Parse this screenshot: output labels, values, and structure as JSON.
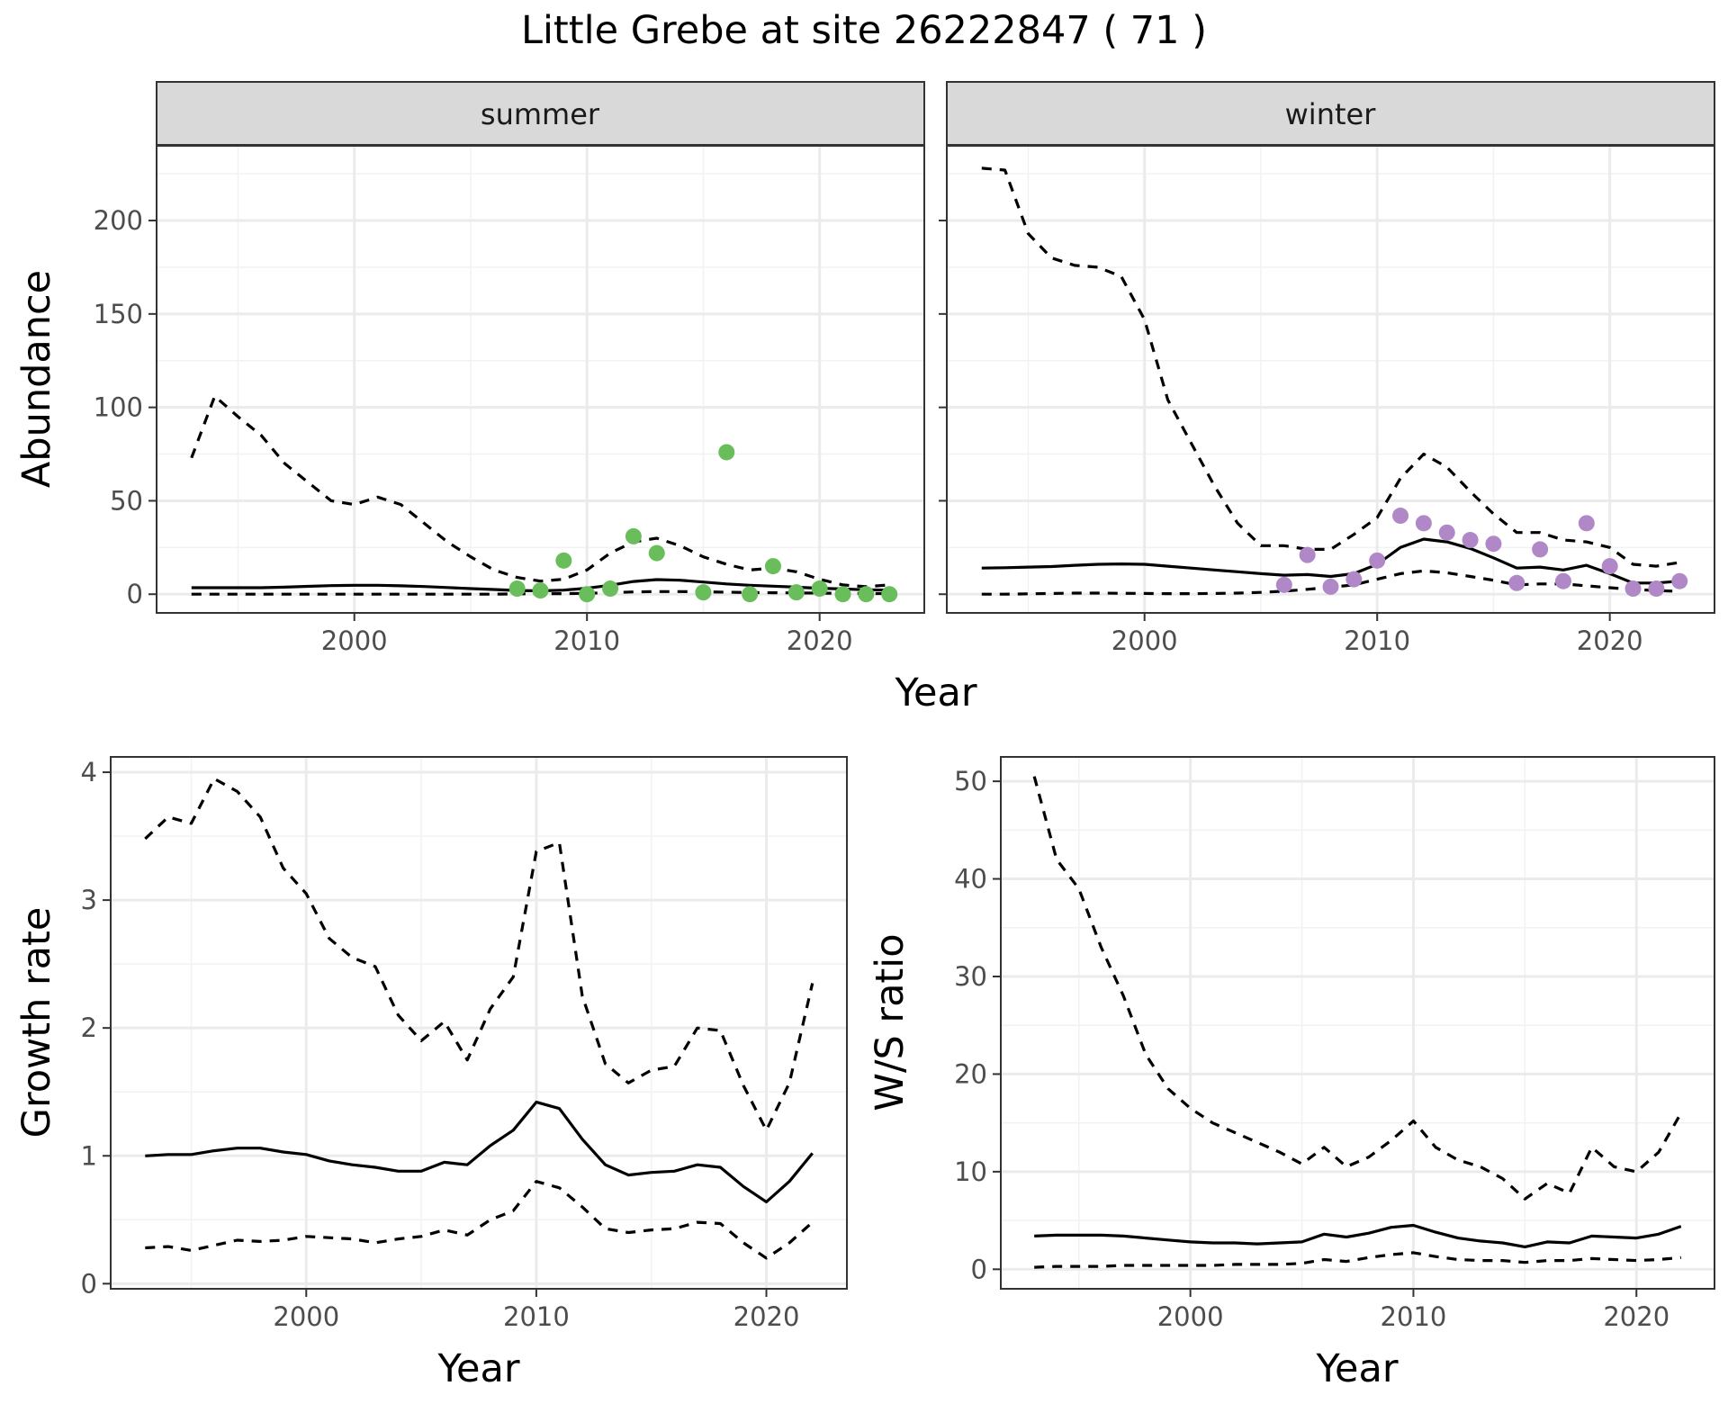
{
  "figure": {
    "title": "Little Grebe at site 26222847 ( 71 )"
  },
  "chart_data": [
    {
      "id": "summer",
      "type": "line",
      "strip_label": "summer",
      "xlabel": "",
      "ylabel": "Abundance",
      "shared_xlabel": "Year",
      "xlim": [
        1991.5,
        2024.5
      ],
      "ylim": [
        -10,
        240
      ],
      "xticks": [
        2000,
        2010,
        2020
      ],
      "yticks": [
        0,
        50,
        100,
        150,
        200
      ],
      "grid": true,
      "point_color": "#6abd5b",
      "x": [
        1993,
        1994,
        1995,
        1996,
        1997,
        1998,
        1999,
        2000,
        2001,
        2002,
        2003,
        2004,
        2005,
        2006,
        2007,
        2008,
        2009,
        2010,
        2011,
        2012,
        2013,
        2014,
        2015,
        2016,
        2017,
        2018,
        2019,
        2020,
        2021,
        2022,
        2023
      ],
      "series": [
        {
          "style": "solid",
          "values": [
            3.5,
            3.5,
            3.5,
            3.5,
            3.8,
            4.2,
            4.6,
            4.8,
            4.8,
            4.5,
            4.1,
            3.6,
            3.0,
            2.5,
            2.0,
            1.8,
            2.2,
            3.2,
            4.8,
            6.8,
            7.8,
            7.5,
            6.5,
            5.5,
            4.8,
            4.3,
            3.8,
            3.2,
            2.8,
            2.4,
            2.2
          ]
        },
        {
          "style": "dashed",
          "values": [
            73,
            106,
            95,
            85,
            70,
            60,
            50,
            48,
            52,
            48,
            38,
            28,
            20,
            13,
            9,
            7,
            8,
            13,
            22,
            28,
            30,
            26,
            20,
            16,
            13,
            14,
            12,
            8,
            5,
            4,
            5
          ]
        },
        {
          "style": "dashed",
          "values": [
            0,
            0,
            0,
            0,
            0,
            0,
            0,
            0,
            0,
            0,
            0,
            0,
            0,
            0,
            0.2,
            0.2,
            0.3,
            0.5,
            0.8,
            1.2,
            1.4,
            1.4,
            1.3,
            1.1,
            0.9,
            0.8,
            0.7,
            0.6,
            0.5,
            0.4,
            0.3
          ]
        }
      ],
      "points": [
        {
          "x": 2007,
          "y": 3
        },
        {
          "x": 2008,
          "y": 2
        },
        {
          "x": 2009,
          "y": 18
        },
        {
          "x": 2010,
          "y": 0
        },
        {
          "x": 2011,
          "y": 3
        },
        {
          "x": 2012,
          "y": 31
        },
        {
          "x": 2013,
          "y": 22
        },
        {
          "x": 2015,
          "y": 1
        },
        {
          "x": 2016,
          "y": 76
        },
        {
          "x": 2017,
          "y": 0
        },
        {
          "x": 2018,
          "y": 15
        },
        {
          "x": 2019,
          "y": 1
        },
        {
          "x": 2020,
          "y": 3
        },
        {
          "x": 2021,
          "y": 0
        },
        {
          "x": 2022,
          "y": 0
        },
        {
          "x": 2023,
          "y": 0
        }
      ]
    },
    {
      "id": "winter",
      "type": "line",
      "strip_label": "winter",
      "xlabel": "",
      "ylabel": "",
      "xlim": [
        1991.5,
        2024.5
      ],
      "ylim": [
        -10,
        240
      ],
      "xticks": [
        2000,
        2010,
        2020
      ],
      "yticks": [
        0,
        50,
        100,
        150,
        200
      ],
      "show_y_tick_labels": false,
      "grid": true,
      "point_color": "#b088c8",
      "x": [
        1993,
        1994,
        1995,
        1996,
        1997,
        1998,
        1999,
        2000,
        2001,
        2002,
        2003,
        2004,
        2005,
        2006,
        2007,
        2008,
        2009,
        2010,
        2011,
        2012,
        2013,
        2014,
        2015,
        2016,
        2017,
        2018,
        2019,
        2020,
        2021,
        2022,
        2023
      ],
      "series": [
        {
          "style": "solid",
          "values": [
            14,
            14.2,
            14.5,
            14.8,
            15.5,
            16,
            16.2,
            16,
            15,
            14,
            13,
            12,
            11,
            10.2,
            10.5,
            9.5,
            11,
            16,
            25,
            29.5,
            28,
            24.5,
            19.5,
            14,
            14.5,
            13,
            15.5,
            11,
            6,
            6,
            7
          ]
        },
        {
          "style": "dashed",
          "values": [
            228,
            227,
            193,
            180,
            176,
            175,
            170,
            147,
            104,
            81,
            58,
            38,
            26,
            26,
            24,
            24,
            32,
            41,
            62,
            75,
            68,
            55,
            43,
            33,
            33,
            29,
            28,
            25,
            16,
            15,
            17
          ]
        },
        {
          "style": "dashed",
          "values": [
            0,
            0,
            0.2,
            0.4,
            0.6,
            0.6,
            0.5,
            0.4,
            0.3,
            0.3,
            0.4,
            0.6,
            1,
            1.6,
            2.6,
            3.8,
            5,
            8,
            11,
            12.5,
            11.5,
            9.5,
            7.5,
            5,
            5.5,
            5.5,
            4.5,
            3.5,
            2.5,
            2,
            1.5
          ]
        }
      ],
      "points": [
        {
          "x": 2006,
          "y": 5
        },
        {
          "x": 2007,
          "y": 21
        },
        {
          "x": 2008,
          "y": 4
        },
        {
          "x": 2009,
          "y": 8
        },
        {
          "x": 2010,
          "y": 18
        },
        {
          "x": 2011,
          "y": 42
        },
        {
          "x": 2012,
          "y": 38
        },
        {
          "x": 2013,
          "y": 33
        },
        {
          "x": 2014,
          "y": 29
        },
        {
          "x": 2015,
          "y": 27
        },
        {
          "x": 2016,
          "y": 6
        },
        {
          "x": 2017,
          "y": 24
        },
        {
          "x": 2018,
          "y": 7
        },
        {
          "x": 2019,
          "y": 38
        },
        {
          "x": 2020,
          "y": 15
        },
        {
          "x": 2021,
          "y": 3
        },
        {
          "x": 2022,
          "y": 3
        },
        {
          "x": 2023,
          "y": 7
        }
      ]
    },
    {
      "id": "growth",
      "type": "line",
      "xlabel": "Year",
      "ylabel": "Growth rate",
      "xlim": [
        1991.5,
        2023.5
      ],
      "ylim": [
        -0.04,
        4.12
      ],
      "xticks": [
        2000,
        2010,
        2020
      ],
      "yticks": [
        0,
        1,
        2,
        3,
        4
      ],
      "grid": true,
      "x": [
        1993,
        1994,
        1995,
        1996,
        1997,
        1998,
        1999,
        2000,
        2001,
        2002,
        2003,
        2004,
        2005,
        2006,
        2007,
        2008,
        2009,
        2010,
        2011,
        2012,
        2013,
        2014,
        2015,
        2016,
        2017,
        2018,
        2019,
        2020,
        2021,
        2022
      ],
      "series": [
        {
          "style": "solid",
          "values": [
            1.0,
            1.01,
            1.01,
            1.04,
            1.06,
            1.06,
            1.03,
            1.01,
            0.96,
            0.93,
            0.91,
            0.88,
            0.88,
            0.95,
            0.93,
            1.08,
            1.2,
            1.42,
            1.37,
            1.13,
            0.93,
            0.85,
            0.87,
            0.88,
            0.93,
            0.91,
            0.76,
            0.64,
            0.8,
            1.02
          ]
        },
        {
          "style": "dashed",
          "values": [
            3.48,
            3.65,
            3.6,
            3.95,
            3.85,
            3.65,
            3.25,
            3.05,
            2.7,
            2.55,
            2.48,
            2.1,
            1.9,
            2.05,
            1.75,
            2.15,
            2.4,
            3.38,
            3.45,
            2.25,
            1.72,
            1.57,
            1.67,
            1.7,
            2.0,
            1.98,
            1.55,
            1.2,
            1.57,
            2.35
          ]
        },
        {
          "style": "dashed",
          "values": [
            0.28,
            0.29,
            0.26,
            0.3,
            0.34,
            0.33,
            0.34,
            0.37,
            0.36,
            0.35,
            0.32,
            0.35,
            0.37,
            0.42,
            0.38,
            0.5,
            0.57,
            0.8,
            0.75,
            0.6,
            0.43,
            0.4,
            0.42,
            0.43,
            0.48,
            0.47,
            0.32,
            0.2,
            0.32,
            0.48
          ]
        }
      ]
    },
    {
      "id": "ws_ratio",
      "type": "line",
      "xlabel": "Year",
      "ylabel": "W/S ratio",
      "xlim": [
        1991.5,
        2023.5
      ],
      "ylim": [
        -2,
        52.5
      ],
      "xticks": [
        2000,
        2010,
        2020
      ],
      "yticks": [
        0,
        10,
        20,
        30,
        40,
        50
      ],
      "grid": true,
      "x": [
        1993,
        1994,
        1995,
        1996,
        1997,
        1998,
        1999,
        2000,
        2001,
        2002,
        2003,
        2004,
        2005,
        2006,
        2007,
        2008,
        2009,
        2010,
        2011,
        2012,
        2013,
        2014,
        2015,
        2016,
        2017,
        2018,
        2019,
        2020,
        2021,
        2022
      ],
      "series": [
        {
          "style": "solid",
          "values": [
            3.4,
            3.5,
            3.5,
            3.5,
            3.4,
            3.2,
            3.0,
            2.8,
            2.7,
            2.7,
            2.6,
            2.7,
            2.8,
            3.6,
            3.3,
            3.7,
            4.3,
            4.5,
            3.8,
            3.2,
            2.9,
            2.7,
            2.3,
            2.8,
            2.7,
            3.4,
            3.3,
            3.2,
            3.6,
            4.4
          ]
        },
        {
          "style": "dashed",
          "values": [
            50.5,
            42,
            39,
            33,
            28,
            22,
            18.5,
            16.5,
            15,
            14,
            13,
            12,
            10.8,
            12.5,
            10.5,
            11.5,
            13.2,
            15.2,
            12.5,
            11.2,
            10.5,
            9.3,
            7.2,
            8.8,
            7.8,
            12.5,
            10.5,
            10,
            12,
            16
          ]
        },
        {
          "style": "dashed",
          "values": [
            0.2,
            0.3,
            0.3,
            0.3,
            0.4,
            0.4,
            0.4,
            0.4,
            0.4,
            0.5,
            0.5,
            0.5,
            0.6,
            1.0,
            0.8,
            1.2,
            1.5,
            1.7,
            1.3,
            1.0,
            0.9,
            0.9,
            0.7,
            0.9,
            0.9,
            1.1,
            1.0,
            0.9,
            1.0,
            1.2
          ]
        }
      ]
    }
  ]
}
